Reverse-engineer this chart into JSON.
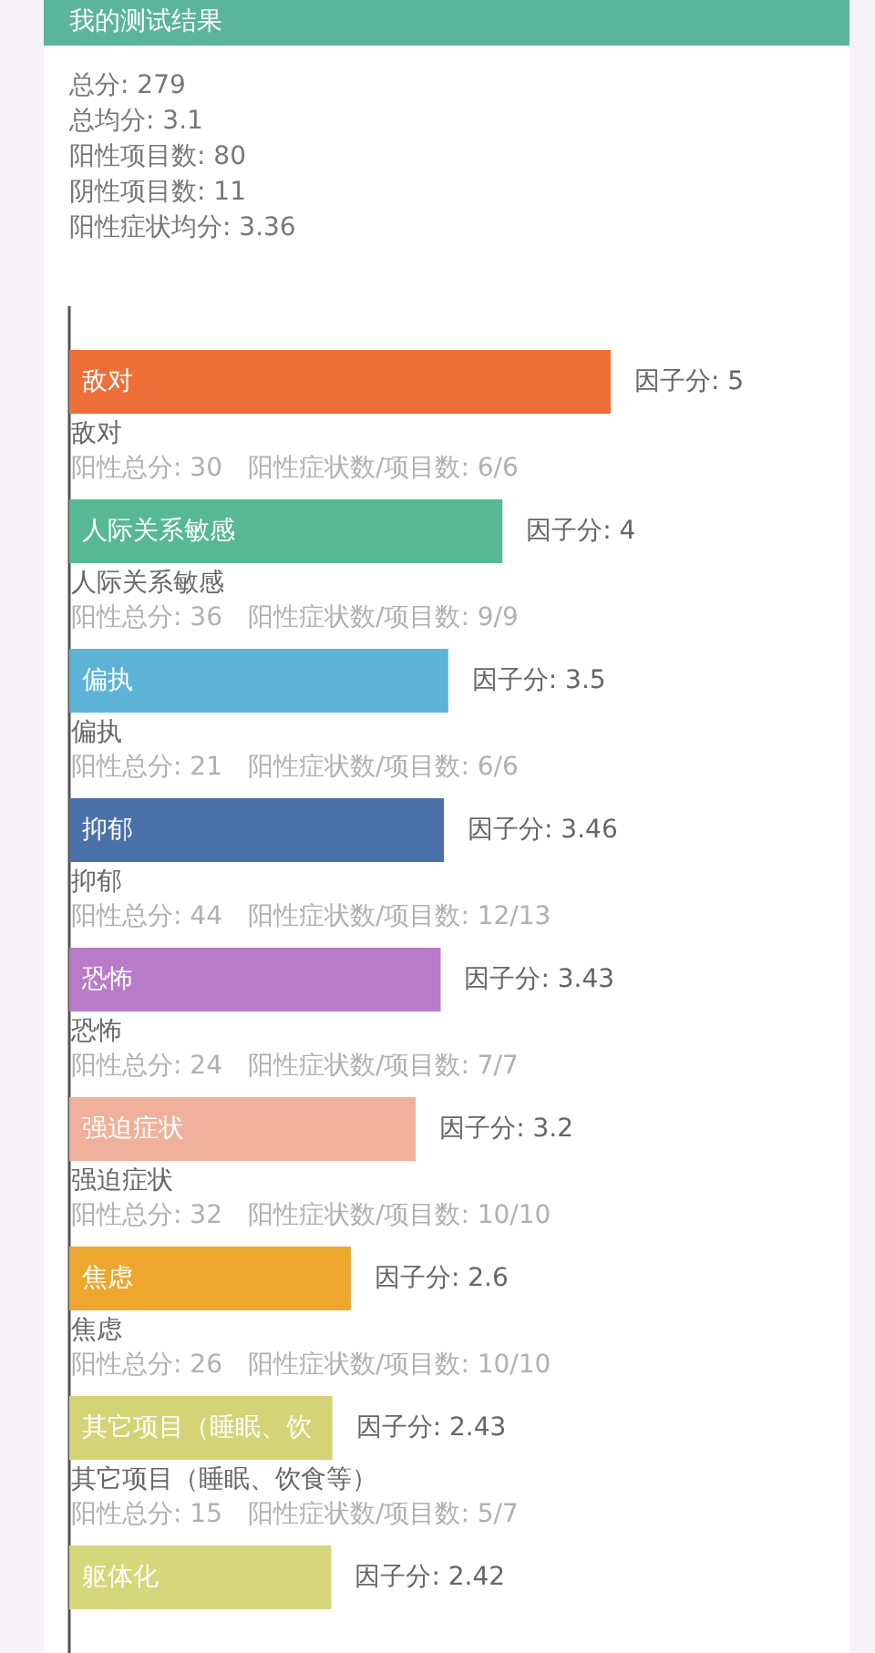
{
  "chart_data": {
    "type": "bar",
    "orientation": "horizontal",
    "title": "我的测试结果",
    "subtitle": "总分: 279\n总均分: 3.1\n阳性项目数: 80\n阴性项目数: 11\n阳性症状均分: 3.36",
    "categories": [
      "敌对",
      "人际关系敏感",
      "偏执",
      "抑郁",
      "恐怖",
      "强迫症状",
      "焦虑",
      "其它项目（睡眠、饮",
      "躯体化"
    ],
    "values": [
      5,
      4,
      3.5,
      3.46,
      3.43,
      3.2,
      2.6,
      2.43,
      2.42
    ],
    "colors": [
      "#ee7038",
      "#57b894",
      "#5db3d6",
      "#4a72a8",
      "#b97bc8",
      "#efb19b",
      "#eda72f",
      "#d4d477",
      "#d6d67a"
    ],
    "value_labels": [
      "因子分: 5",
      "因子分: 4",
      "因子分: 3.5",
      "因子分: 3.46",
      "因子分: 3.43",
      "因子分: 3.2",
      "因子分: 2.6",
      "因子分: 2.43",
      "因子分: 2.42"
    ],
    "annotations": [
      "敌对",
      "阳性总分: 30　阳性症状数/项目数: 6/6",
      "人际关系敏感",
      "阳性总分: 36　阳性症状数/项目数: 9/9",
      "偏执",
      "阳性总分: 21　阳性症状数/项目数: 6/6",
      "抑郁",
      "阳性总分: 44　阳性症状数/项目数: 12/13",
      "恐怖",
      "阳性总分: 24　阳性症状数/项目数: 7/7",
      "强迫症状",
      "阳性总分: 32　阳性症状数/项目数: 10/10",
      "焦虑",
      "阳性总分: 26　阳性症状数/项目数: 10/10",
      "其它项目（睡眠、饮食等）",
      "阳性总分: 15　阳性症状数/项目数: 5/7"
    ]
  }
}
